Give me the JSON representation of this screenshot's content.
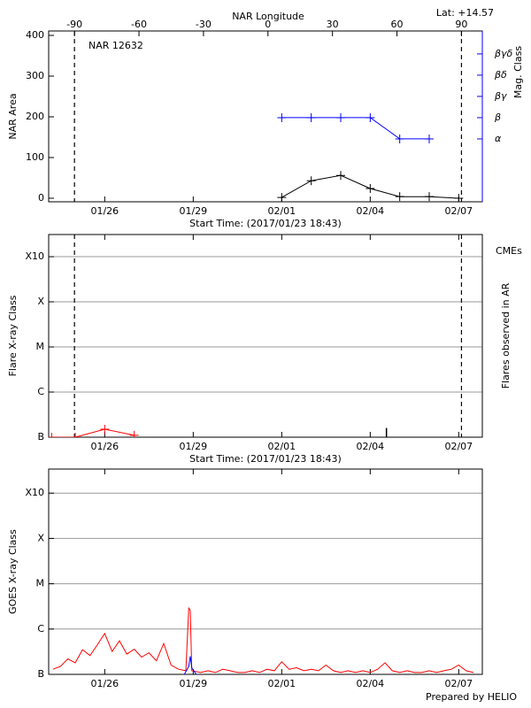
{
  "chart_data": [
    {
      "type": "line",
      "title": "NAR 12632",
      "annotation": "Lat: +14.57",
      "xlabel": "Start Time: (2017/01/23 18:43)",
      "ylabel": "NAR Area",
      "x2label": "NAR Longitude",
      "y2label": "Mag. Class",
      "xlim": [
        24.1,
        38.8
      ],
      "xticks": [
        {
          "value": 26,
          "label": "01/26"
        },
        {
          "value": 29,
          "label": "01/29"
        },
        {
          "value": 32,
          "label": "02/01"
        },
        {
          "value": 35,
          "label": "02/04"
        },
        {
          "value": 38,
          "label": "02/07"
        }
      ],
      "ylim": [
        -8.7,
        410.9
      ],
      "yticks": [
        0,
        100,
        200,
        300,
        400
      ],
      "x2lim": [
        -102,
        99.7
      ],
      "x2ticks": [
        -90,
        -60,
        -30,
        0,
        30,
        60,
        90
      ],
      "y2lim": [
        -1.96,
        6.08
      ],
      "y2ticks": [
        {
          "value": 1,
          "label": "α"
        },
        {
          "value": 2,
          "label": "β"
        },
        {
          "value": 3,
          "label": "βγ"
        },
        {
          "value": 4,
          "label": "βδ"
        },
        {
          "value": 5,
          "label": "βγδ"
        }
      ],
      "limb_lines": true,
      "series": [
        {
          "color": "#000000",
          "marker": "plus",
          "x": [
            32,
            33,
            34,
            35,
            36,
            37,
            38
          ],
          "values": [
            2,
            43,
            56,
            24,
            4,
            4,
            0
          ]
        },
        {
          "color": "#0000ff",
          "marker": "plus",
          "axis": "y2",
          "x": [
            32,
            33,
            34,
            35,
            36,
            37
          ],
          "values": [
            2,
            2,
            2,
            2,
            1,
            1
          ]
        }
      ]
    },
    {
      "type": "line",
      "log": true,
      "grid": true,
      "xlabel": "Start Time: (2017/01/23 18:43)",
      "ylabel": "Flare X-ray Class",
      "y2label": "Flares observed in AR",
      "annotation": "CMEs",
      "xlim": [
        24.1,
        38.8
      ],
      "xticks": [
        {
          "value": 26,
          "label": "01/26"
        },
        {
          "value": 29,
          "label": "01/29"
        },
        {
          "value": 32,
          "label": "02/01"
        },
        {
          "value": 35,
          "label": "02/04"
        },
        {
          "value": 38,
          "label": "02/07"
        }
      ],
      "ylim": [
        1e-07,
        0.0031
      ],
      "yticks": [
        {
          "value": 1e-07,
          "label": "B"
        },
        {
          "value": 1e-06,
          "label": "C"
        },
        {
          "value": 1e-05,
          "label": "M"
        },
        {
          "value": 0.0001,
          "label": "X"
        },
        {
          "value": 0.001,
          "label": "X10"
        }
      ],
      "limb_lines": true,
      "series": [
        {
          "color": "#ff0000",
          "marker": "plus",
          "x": [
            24.2,
            25,
            26,
            27
          ],
          "values": [
            1e-07,
            1e-07,
            1.5e-07,
            1.1e-07
          ]
        },
        {
          "color": "#000000",
          "style": "stem",
          "x": [
            35.55
          ],
          "values": [
            1.6e-07
          ]
        }
      ]
    },
    {
      "type": "line",
      "log": true,
      "grid": true,
      "ylabel": "GOES X-ray Class",
      "footer": "Prepared by HELIO",
      "xlim": [
        24.1,
        38.8
      ],
      "xticks": [
        {
          "value": 26,
          "label": "01/26"
        },
        {
          "value": 29,
          "label": "01/29"
        },
        {
          "value": 32,
          "label": "02/01"
        },
        {
          "value": 35,
          "label": "02/04"
        },
        {
          "value": 38,
          "label": "02/07"
        }
      ],
      "ylim": [
        1e-07,
        0.0034
      ],
      "yticks": [
        {
          "value": 1e-07,
          "label": "B"
        },
        {
          "value": 1e-06,
          "label": "C"
        },
        {
          "value": 1e-05,
          "label": "M"
        },
        {
          "value": 0.0001,
          "label": "X"
        },
        {
          "value": 0.001,
          "label": "X10"
        }
      ],
      "series": [
        {
          "color": "#ff0000",
          "x": [
            24.25,
            24.5,
            24.75,
            25,
            25.25,
            25.5,
            25.75,
            26,
            26.25,
            26.5,
            26.75,
            27,
            27.25,
            27.5,
            27.75,
            28,
            28.25,
            28.5,
            28.75,
            28.85,
            28.9,
            28.95,
            29.25,
            29.5,
            29.75,
            30,
            30.25,
            30.5,
            30.75,
            31,
            31.25,
            31.5,
            31.75,
            32,
            32.25,
            32.5,
            32.75,
            33,
            33.25,
            33.5,
            33.75,
            34,
            34.25,
            34.5,
            34.75,
            35,
            35.25,
            35.5,
            35.75,
            36,
            36.25,
            36.5,
            36.75,
            37,
            37.25,
            37.5,
            37.75,
            38,
            38.25,
            38.5
          ],
          "values": [
            1.3e-07,
            1.5e-07,
            2.2e-07,
            1.8e-07,
            3.5e-07,
            2.6e-07,
            4.5e-07,
            8e-07,
            3.2e-07,
            5.5e-07,
            2.8e-07,
            3.6e-07,
            2.4e-07,
            3e-07,
            2e-07,
            4.8e-07,
            1.6e-07,
            1.3e-07,
            1.2e-07,
            2.9e-06,
            2.6e-06,
            1.2e-07,
            1.1e-07,
            1.2e-07,
            1.1e-07,
            1.3e-07,
            1.2e-07,
            1.1e-07,
            1.1e-07,
            1.2e-07,
            1.1e-07,
            1.3e-07,
            1.2e-07,
            1.9e-07,
            1.3e-07,
            1.4e-07,
            1.2e-07,
            1.3e-07,
            1.2e-07,
            1.6e-07,
            1.2e-07,
            1.1e-07,
            1.2e-07,
            1.1e-07,
            1.2e-07,
            1.1e-07,
            1.3e-07,
            1.8e-07,
            1.2e-07,
            1.1e-07,
            1.2e-07,
            1.1e-07,
            1.1e-07,
            1.2e-07,
            1.1e-07,
            1.2e-07,
            1.3e-07,
            1.6e-07,
            1.2e-07,
            1.1e-07
          ]
        },
        {
          "color": "#0000ff",
          "x": [
            28.7,
            28.85,
            28.9,
            28.95,
            29.1
          ],
          "values": [
            1e-07,
            1.5e-07,
            2.5e-07,
            1.4e-07,
            1e-07
          ]
        }
      ]
    }
  ]
}
